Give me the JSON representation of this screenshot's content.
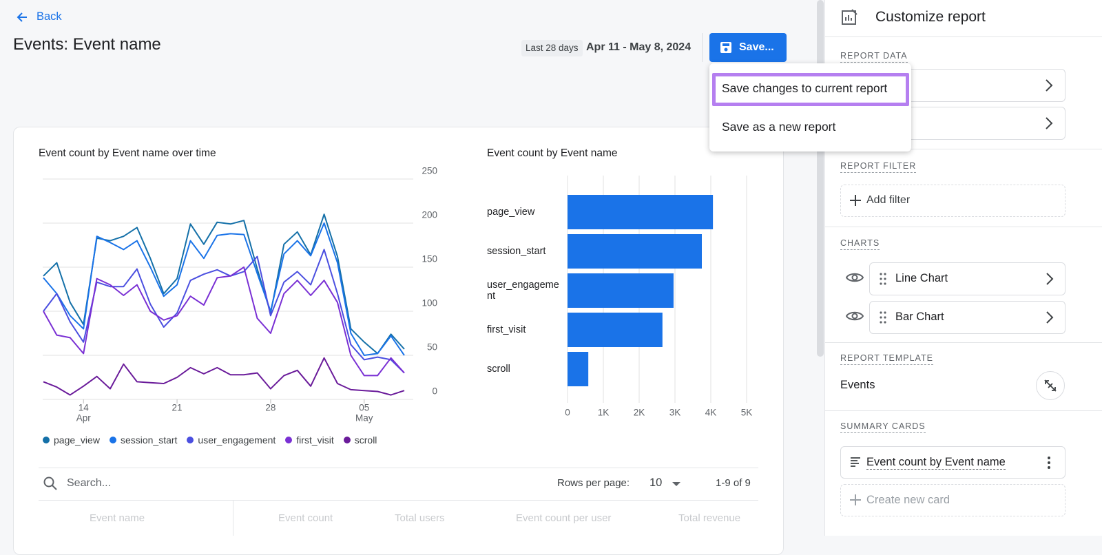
{
  "nav": {
    "back": "Back"
  },
  "header": {
    "title": "Events: Event name",
    "date_range_label": "Last 28 days",
    "date_range": "Apr 11 - May 8, 2024",
    "save_button": "Save..."
  },
  "save_menu": {
    "items": [
      "Save changes to current report",
      "Save as a new report"
    ]
  },
  "chart_data": [
    {
      "type": "line",
      "title": "Event count by Event name over time",
      "categories": [
        null,
        null,
        null,
        "14",
        null,
        null,
        null,
        null,
        null,
        null,
        "21",
        null,
        null,
        null,
        null,
        null,
        null,
        "28",
        null,
        null,
        null,
        null,
        null,
        null,
        "05",
        null,
        null,
        null
      ],
      "month_labels": [
        null,
        null,
        null,
        "Apr",
        null,
        null,
        null,
        null,
        null,
        null,
        null,
        null,
        null,
        null,
        null,
        null,
        null,
        null,
        null,
        null,
        null,
        null,
        null,
        null,
        "May",
        null,
        null,
        null
      ],
      "series": [
        {
          "name": "page_view",
          "color": "#1470a8",
          "values": [
            140,
            155,
            110,
            85,
            183,
            180,
            185,
            195,
            160,
            120,
            137,
            199,
            176,
            201,
            199,
            203,
            148,
            98,
            176,
            190,
            164,
            210,
            162,
            80,
            65,
            52,
            74,
            57
          ]
        },
        {
          "name": "session_start",
          "color": "#1a73e8",
          "values": [
            138,
            120,
            95,
            80,
            185,
            178,
            170,
            180,
            150,
            117,
            130,
            180,
            160,
            186,
            188,
            187,
            143,
            100,
            165,
            180,
            163,
            200,
            155,
            75,
            50,
            52,
            72,
            50
          ]
        },
        {
          "name": "user_engagement",
          "color": "#4b4fe0",
          "values": [
            100,
            120,
            88,
            65,
            133,
            128,
            128,
            148,
            108,
            82,
            98,
            135,
            142,
            147,
            140,
            145,
            162,
            95,
            133,
            145,
            130,
            170,
            120,
            62,
            45,
            48,
            45,
            30
          ]
        },
        {
          "name": "first_visit",
          "color": "#7a30d4",
          "values": [
            100,
            73,
            70,
            52,
            137,
            130,
            118,
            130,
            100,
            90,
            95,
            117,
            107,
            138,
            140,
            150,
            92,
            75,
            120,
            135,
            118,
            135,
            110,
            50,
            27,
            27,
            47,
            30
          ]
        },
        {
          "name": "scroll",
          "color": "#6a1b9a",
          "values": [
            20,
            14,
            5,
            15,
            26,
            12,
            40,
            20,
            19,
            18,
            25,
            36,
            29,
            36,
            28,
            28,
            30,
            12,
            27,
            33,
            15,
            47,
            18,
            11,
            10,
            9,
            5,
            10
          ]
        }
      ],
      "ylim": [
        0,
        250
      ],
      "yticks": [
        0,
        50,
        100,
        150,
        200,
        250
      ],
      "yaxis_position": "right",
      "grid": true,
      "legend": "bottom"
    },
    {
      "type": "bar",
      "orientation": "horizontal",
      "title": "Event count by Event name",
      "categories": [
        "page_view",
        "session_start",
        "user_engagement",
        "first_visit",
        "scroll"
      ],
      "values": [
        4060,
        3750,
        2960,
        2650,
        580
      ],
      "color": "#1a73e8",
      "xlim": [
        0,
        5000
      ],
      "xticks": [
        0,
        {
          "value": 1000,
          "label": "1K"
        },
        {
          "value": 2000,
          "label": "2K"
        },
        {
          "value": 3000,
          "label": "3K"
        },
        {
          "value": 4000,
          "label": "4K"
        },
        {
          "value": 5000,
          "label": "5K"
        }
      ],
      "grid": true
    }
  ],
  "table": {
    "search_placeholder": "Search...",
    "rows_per_page_label": "Rows per page:",
    "rows_per_page": 10,
    "pagination": "1-9 of 9",
    "columns": [
      "Event name",
      "Event count",
      "Total users",
      "Event count per user",
      "Total revenue"
    ]
  },
  "sidebar": {
    "title": "Customize report",
    "report_data_label": "REPORT DATA",
    "report_filter_label": "REPORT FILTER",
    "add_filter": "Add filter",
    "charts_label": "CHARTS",
    "charts": [
      "Line Chart",
      "Bar Chart"
    ],
    "report_template_label": "REPORT TEMPLATE",
    "template": "Events",
    "summary_cards_label": "SUMMARY CARDS",
    "summary_card": "Event count by Event name",
    "create_card": "Create new card"
  }
}
